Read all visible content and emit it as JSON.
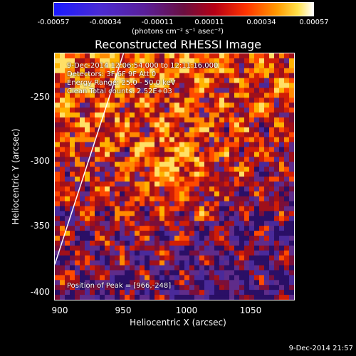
{
  "colorbar": {
    "ticks": [
      "-0.00057",
      "-0.00034",
      "-0.00011",
      "0.00011",
      "0.00034",
      "0.00057"
    ],
    "units": "(photons cm⁻² s⁻¹ asec⁻²)"
  },
  "plot": {
    "title": "Reconstructed RHESSI Image",
    "info_lines": [
      "9-Dec-2014 12:06:54.000 to 12:11:16.000",
      "Detectors: 3F 6F 9F  Att 0",
      "Energy Range: 25.0 - 50.0 keV",
      "Clean    Total counts: 2.52E+03"
    ],
    "peak_text": "Position of Peak = [966,-248]",
    "x_ticks": [
      "900",
      "950",
      "1000",
      "1050"
    ],
    "y_ticks": [
      "-250",
      "-300",
      "-350",
      "-400"
    ],
    "x_label": "Heliocentric X (arcsec)",
    "y_label": "Heliocentric Y (arcsec)"
  },
  "footer": {
    "date": "9-Dec-2014 21:57"
  },
  "colors": {
    "background": "#000000",
    "limb_line": "#ffffff",
    "peak_color": "#ffff88"
  }
}
